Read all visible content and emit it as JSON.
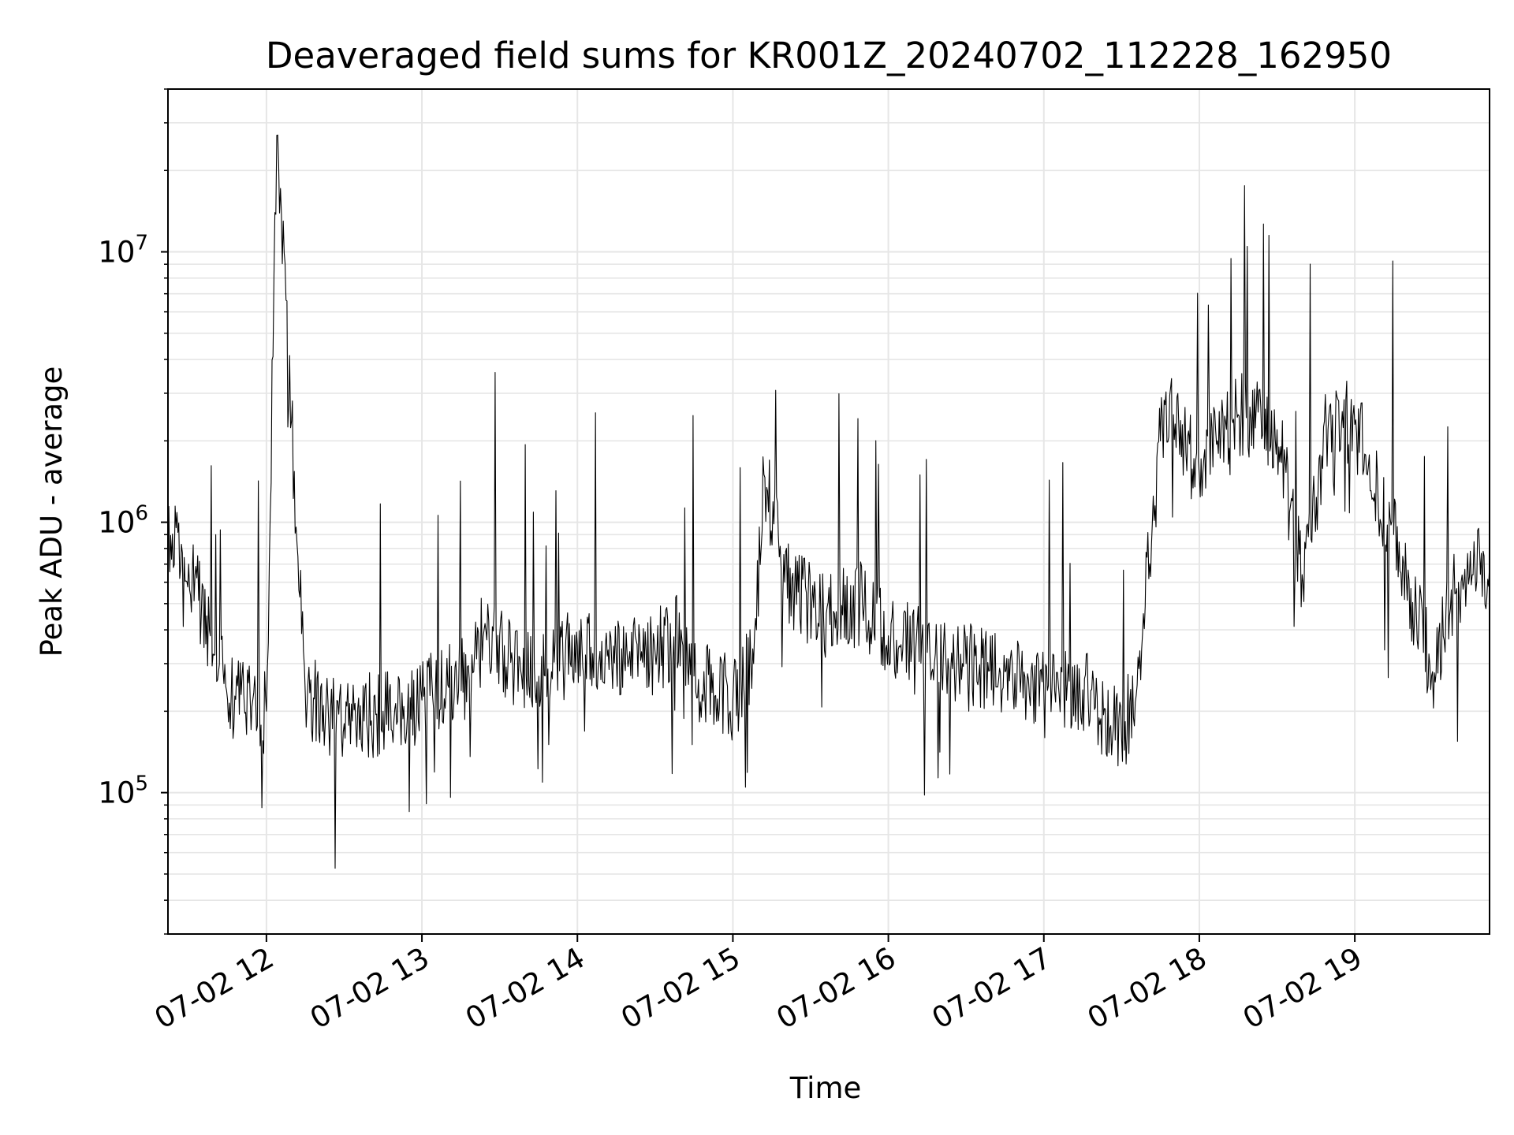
{
  "chart_data": {
    "type": "line",
    "title": "Deaveraged field sums for KR001Z_20240702_112228_162950",
    "xlabel": "Time",
    "ylabel": "Peak ADU - average",
    "x_axis": {
      "kind": "time",
      "range": [
        "2024-07-02 11:22",
        "2024-07-02 19:52"
      ],
      "ticks": [
        "07-02 12",
        "07-02 13",
        "07-02 14",
        "07-02 15",
        "07-02 16",
        "07-02 17",
        "07-02 18",
        "07-02 19"
      ],
      "tick_times": [
        "2024-07-02 12:00",
        "2024-07-02 13:00",
        "2024-07-02 14:00",
        "2024-07-02 15:00",
        "2024-07-02 16:00",
        "2024-07-02 17:00",
        "2024-07-02 18:00",
        "2024-07-02 19:00"
      ],
      "tick_rotation": 30
    },
    "y_axis": {
      "scale": "log",
      "range": [
        30000,
        40000000
      ],
      "major_ticks": [
        {
          "value": 100000,
          "base": "10",
          "exp": "5"
        },
        {
          "value": 1000000,
          "base": "10",
          "exp": "6"
        },
        {
          "value": 10000000,
          "base": "10",
          "exp": "7"
        }
      ]
    },
    "grid": true,
    "line_color": "#000000",
    "series": [
      {
        "x": [
          "2024-07-02 11:22",
          "2024-07-02 11:30",
          "2024-07-02 11:38",
          "2024-07-02 11:45",
          "2024-07-02 12:00",
          "2024-07-02 12:04",
          "2024-07-02 12:15",
          "2024-07-02 12:30",
          "2024-07-02 12:45",
          "2024-07-02 13:00",
          "2024-07-02 13:10",
          "2024-07-02 13:20",
          "2024-07-02 13:24",
          "2024-07-02 13:35",
          "2024-07-02 13:50",
          "2024-07-02 14:00",
          "2024-07-02 14:15",
          "2024-07-02 14:30",
          "2024-07-02 14:40",
          "2024-07-02 14:45",
          "2024-07-02 15:00",
          "2024-07-02 15:08",
          "2024-07-02 15:12",
          "2024-07-02 15:20",
          "2024-07-02 15:35",
          "2024-07-02 15:50",
          "2024-07-02 16:00",
          "2024-07-02 16:15",
          "2024-07-02 16:30",
          "2024-07-02 16:45",
          "2024-07-02 17:00",
          "2024-07-02 17:15",
          "2024-07-02 17:30",
          "2024-07-02 17:36",
          "2024-07-02 17:45",
          "2024-07-02 17:50",
          "2024-07-02 18:00",
          "2024-07-02 18:07",
          "2024-07-02 18:15",
          "2024-07-02 18:30",
          "2024-07-02 18:40",
          "2024-07-02 18:50",
          "2024-07-02 19:00",
          "2024-07-02 19:15",
          "2024-07-02 19:30",
          "2024-07-02 19:40",
          "2024-07-02 19:52"
        ],
        "y": [
          900000,
          700000,
          400000,
          220000,
          200000,
          27000000,
          230000,
          180000,
          200000,
          220000,
          250000,
          280000,
          400000,
          300000,
          280000,
          350000,
          320000,
          330000,
          400000,
          270000,
          220000,
          300000,
          1500000,
          600000,
          450000,
          500000,
          380000,
          330000,
          300000,
          280000,
          230000,
          240000,
          160000,
          250000,
          2000000,
          2500000,
          1500000,
          2000000,
          2500000,
          2200000,
          600000,
          2500000,
          2300000,
          900000,
          280000,
          600000,
          700000
        ]
      }
    ]
  }
}
